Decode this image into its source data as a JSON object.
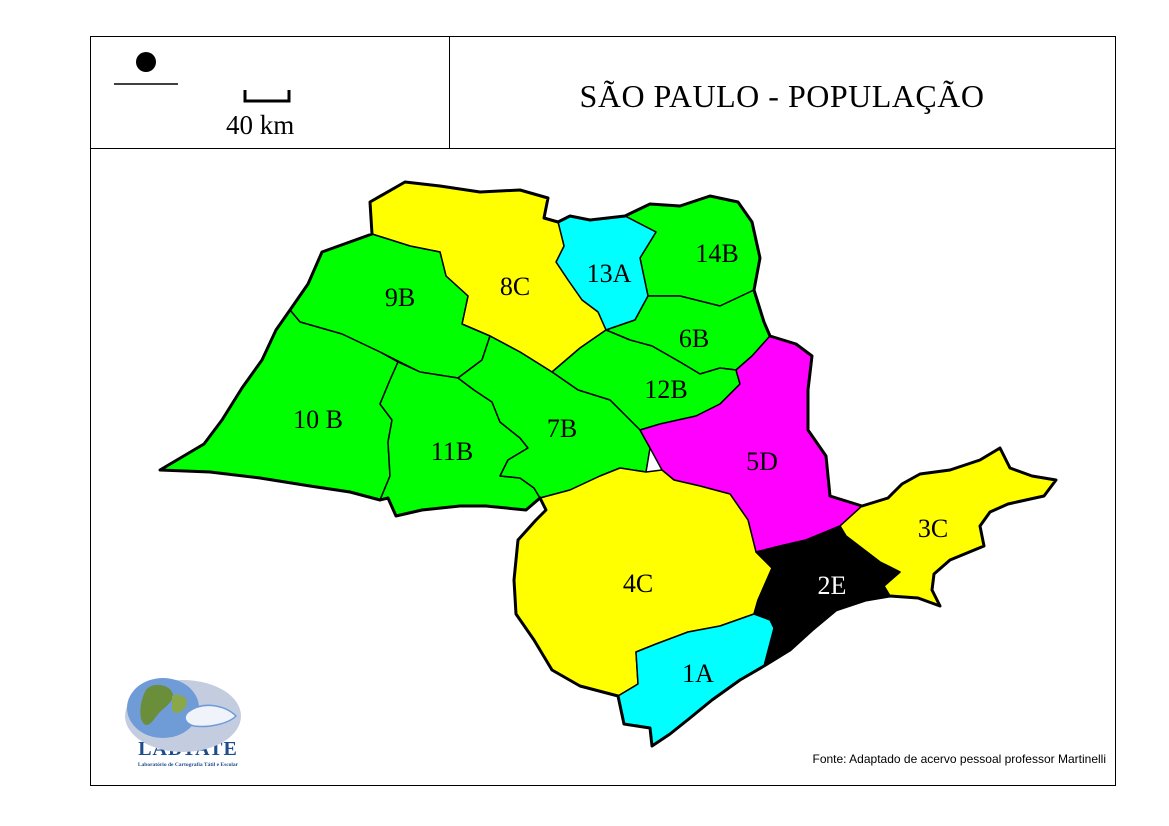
{
  "title": "SÃO PAULO - POPULAÇÃO",
  "scale_label": "40 km",
  "source_note": "Fonte: Adaptado de acervo pessoal professor Martinelli",
  "logo": {
    "name": "LABTATE",
    "subtitle": "Laboratório de Cartografia Tátil e Escolar"
  },
  "colors": {
    "green": "#00ff00",
    "yellow": "#ffff00",
    "cyan": "#00ffff",
    "magenta": "#ff00ff",
    "black": "#000000"
  },
  "regions": [
    {
      "id": "14B",
      "label": "14B",
      "color": "#00ff00"
    },
    {
      "id": "13A",
      "label": "13A",
      "color": "#00ffff"
    },
    {
      "id": "8C",
      "label": "8C",
      "color": "#ffff00"
    },
    {
      "id": "9B",
      "label": "9B",
      "color": "#00ff00"
    },
    {
      "id": "6B",
      "label": "6B",
      "color": "#00ff00"
    },
    {
      "id": "12B",
      "label": "12B",
      "color": "#00ff00"
    },
    {
      "id": "10B",
      "label": "10 B",
      "color": "#00ff00"
    },
    {
      "id": "11B",
      "label": "11B",
      "color": "#00ff00"
    },
    {
      "id": "7B",
      "label": "7B",
      "color": "#00ff00"
    },
    {
      "id": "5D",
      "label": "5D",
      "color": "#ff00ff"
    },
    {
      "id": "3C",
      "label": "3C",
      "color": "#ffff00"
    },
    {
      "id": "4C",
      "label": "4C",
      "color": "#ffff00"
    },
    {
      "id": "2E",
      "label": "2E",
      "color": "#000000"
    },
    {
      "id": "1A",
      "label": "1A",
      "color": "#00ffff"
    }
  ]
}
